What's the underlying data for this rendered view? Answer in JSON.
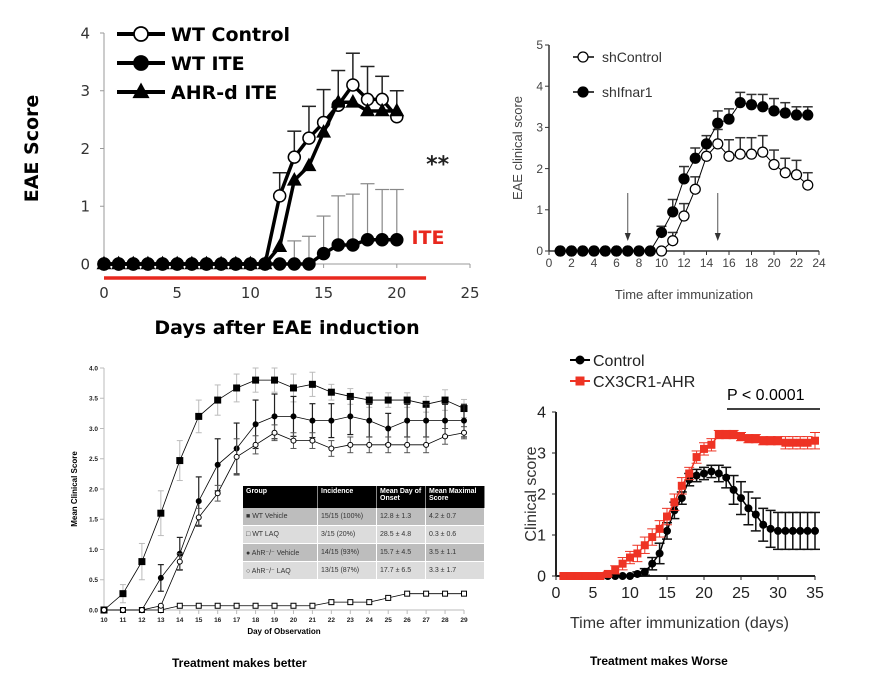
{
  "captions": {
    "left": "Treatment makes better",
    "right": "Treatment makes Worse"
  },
  "chart_data": [
    {
      "id": "panel-top-left",
      "type": "line",
      "title": "",
      "xlabel": "Days after EAE induction",
      "ylabel": "EAE Score",
      "xlim": [
        0,
        25
      ],
      "ylim": [
        0,
        4
      ],
      "xticks": [
        0,
        5,
        10,
        15,
        20,
        25
      ],
      "yticks": [
        0,
        1,
        2,
        3,
        4
      ],
      "legend_position": "top-left",
      "annotations": [
        {
          "text": "**",
          "x": 22,
          "y": 1.6,
          "color": "#222222"
        },
        {
          "text": "ITE",
          "x": 21,
          "y": 0.35,
          "color": "#e8281e"
        }
      ],
      "treatment_bar": {
        "from": 0,
        "to": 22,
        "color": "#e8281e",
        "label": "ITE"
      },
      "series": [
        {
          "name": "WT Control",
          "marker": "open-circle",
          "x": [
            0,
            1,
            2,
            3,
            4,
            5,
            6,
            7,
            8,
            9,
            10,
            11,
            12,
            13,
            14,
            15,
            16,
            17,
            18,
            19,
            20
          ],
          "y": [
            0,
            0,
            0,
            0,
            0,
            0,
            0,
            0,
            0,
            0,
            0,
            0,
            1.18,
            1.85,
            2.18,
            2.45,
            2.75,
            3.1,
            2.85,
            2.85,
            2.55
          ],
          "err": [
            0,
            0,
            0,
            0,
            0,
            0,
            0,
            0,
            0,
            0,
            0,
            0,
            0.4,
            0.45,
            0.55,
            0.57,
            0.6,
            0.55,
            0.57,
            0.4,
            0.45
          ]
        },
        {
          "name": "WT ITE",
          "marker": "filled-circle",
          "x": [
            0,
            1,
            2,
            3,
            4,
            5,
            6,
            7,
            8,
            9,
            10,
            11,
            12,
            13,
            14,
            15,
            16,
            17,
            18,
            19,
            20
          ],
          "y": [
            0,
            0,
            0,
            0,
            0,
            0,
            0,
            0,
            0,
            0,
            0,
            0,
            0,
            0,
            0,
            0.18,
            0.33,
            0.33,
            0.42,
            0.42,
            0.42
          ],
          "err": [
            0,
            0,
            0,
            0,
            0,
            0,
            0,
            0,
            0,
            0,
            0,
            0,
            0,
            0.4,
            0.48,
            0.65,
            0.85,
            0.88,
            0.97,
            0.87,
            0.87
          ]
        },
        {
          "name": "AHR-d ITE",
          "marker": "filled-triangle",
          "x": [
            0,
            1,
            2,
            3,
            4,
            5,
            6,
            7,
            8,
            9,
            10,
            11,
            12,
            13,
            14,
            15,
            16,
            17,
            18,
            19,
            20
          ],
          "y": [
            0,
            0,
            0,
            0,
            0,
            0,
            0,
            0,
            0,
            0,
            0,
            0,
            0.3,
            1.45,
            1.7,
            2.28,
            2.8,
            2.8,
            2.65,
            2.65,
            2.65
          ],
          "err": [
            0,
            0,
            0,
            0,
            0,
            0,
            0,
            0,
            0,
            0,
            0,
            0,
            0,
            0,
            0,
            0,
            0,
            0,
            0,
            0,
            0
          ]
        }
      ]
    },
    {
      "id": "panel-top-right",
      "type": "line",
      "title": "",
      "xlabel": "Time after immunization",
      "ylabel": "EAE clinical score",
      "xlim": [
        0,
        24
      ],
      "ylim": [
        0,
        5
      ],
      "xticks": [
        0,
        2,
        4,
        6,
        8,
        10,
        12,
        14,
        16,
        18,
        20,
        22,
        24
      ],
      "yticks": [
        0,
        1,
        2,
        3,
        4,
        5
      ],
      "legend_position": "top-left",
      "arrows_at_x": [
        7,
        15
      ],
      "series": [
        {
          "name": "shControl",
          "marker": "open-circle",
          "x": [
            1,
            2,
            3,
            4,
            5,
            6,
            7,
            8,
            9,
            10,
            11,
            12,
            13,
            14,
            15,
            16,
            17,
            18,
            19,
            20,
            21,
            22,
            23
          ],
          "y": [
            0,
            0,
            0,
            0,
            0,
            0,
            0,
            0,
            0,
            0,
            0.25,
            0.85,
            1.5,
            2.3,
            2.6,
            2.3,
            2.35,
            2.35,
            2.4,
            2.1,
            1.9,
            1.85,
            1.6
          ],
          "err": [
            0,
            0,
            0,
            0,
            0,
            0,
            0,
            0,
            0,
            0,
            0.2,
            0.3,
            0.3,
            0.35,
            0.35,
            0.4,
            0.4,
            0.4,
            0.4,
            0.35,
            0.35,
            0.35,
            0.3
          ]
        },
        {
          "name": "shIfnar1",
          "marker": "filled-circle",
          "x": [
            1,
            2,
            3,
            4,
            5,
            6,
            7,
            8,
            9,
            10,
            11,
            12,
            13,
            14,
            15,
            16,
            17,
            18,
            19,
            20,
            21,
            22,
            23
          ],
          "y": [
            0,
            0,
            0,
            0,
            0,
            0,
            0,
            0,
            0,
            0.45,
            0.95,
            1.75,
            2.25,
            2.6,
            3.1,
            3.2,
            3.6,
            3.55,
            3.5,
            3.4,
            3.35,
            3.3,
            3.3
          ],
          "err": [
            0,
            0,
            0,
            0,
            0,
            0,
            0,
            0,
            0,
            0.15,
            0.3,
            0.3,
            0.25,
            0.2,
            0.3,
            0.25,
            0.25,
            0.25,
            0.3,
            0.3,
            0.25,
            0.2,
            0.2
          ]
        }
      ]
    },
    {
      "id": "panel-bottom-left",
      "type": "line",
      "title": "",
      "xlabel": "Day of Observation",
      "ylabel": "Mean Clinical Score",
      "xlim": [
        10,
        29
      ],
      "ylim": [
        0,
        4.0
      ],
      "xticks": [
        10,
        11,
        12,
        13,
        14,
        15,
        16,
        17,
        18,
        19,
        20,
        21,
        22,
        23,
        24,
        25,
        26,
        27,
        28,
        29
      ],
      "yticks": [
        "0.0",
        "0.5",
        "1.0",
        "1.5",
        "2.0",
        "2.5",
        "3.0",
        "3.5",
        "4.0"
      ],
      "series": [
        {
          "name": "WT Vehicle",
          "marker": "filled-square",
          "x": [
            10,
            11,
            12,
            13,
            14,
            15,
            16,
            17,
            18,
            19,
            20,
            21,
            22,
            23,
            24,
            25,
            26,
            27,
            28,
            29
          ],
          "y": [
            0,
            0.27,
            0.8,
            1.6,
            2.47,
            3.2,
            3.47,
            3.67,
            3.8,
            3.8,
            3.67,
            3.73,
            3.6,
            3.53,
            3.47,
            3.47,
            3.47,
            3.4,
            3.47,
            3.33
          ],
          "err": [
            0,
            0.15,
            0.3,
            0.37,
            0.33,
            0.27,
            0.25,
            0.23,
            0.2,
            0.2,
            0.23,
            0.2,
            0.13,
            0.13,
            0.12,
            0.12,
            0.12,
            0.13,
            0.17,
            0.15
          ]
        },
        {
          "name": "WT LAQ",
          "marker": "open-square",
          "x": [
            10,
            11,
            12,
            13,
            14,
            15,
            16,
            17,
            18,
            19,
            20,
            21,
            22,
            23,
            24,
            25,
            26,
            27,
            28,
            29
          ],
          "y": [
            0,
            0,
            0,
            0,
            0.07,
            0.07,
            0.07,
            0.07,
            0.07,
            0.07,
            0.07,
            0.07,
            0.13,
            0.13,
            0.13,
            0.2,
            0.27,
            0.27,
            0.27,
            0.27
          ],
          "err": [
            0,
            0,
            0,
            0,
            0,
            0,
            0,
            0,
            0,
            0,
            0,
            0,
            0,
            0,
            0,
            0,
            0,
            0,
            0,
            0
          ]
        },
        {
          "name": "AhR-/- Vehicle",
          "marker": "filled-circle",
          "x": [
            10,
            11,
            12,
            13,
            14,
            15,
            16,
            17,
            18,
            19,
            20,
            21,
            22,
            23,
            24,
            25,
            26,
            27,
            28,
            29
          ],
          "y": [
            0,
            0,
            0,
            0.53,
            0.93,
            1.8,
            2.4,
            2.67,
            3.07,
            3.2,
            3.2,
            3.13,
            3.13,
            3.2,
            3.13,
            3.0,
            3.13,
            3.13,
            3.13,
            3.13
          ],
          "err": [
            0,
            0,
            0,
            0.22,
            0.27,
            0.4,
            0.43,
            0.42,
            0.4,
            0.37,
            0.33,
            0.28,
            0.28,
            0.3,
            0.27,
            0.25,
            0.27,
            0.27,
            0.27,
            0.27
          ]
        },
        {
          "name": "AhR-/- LAQ",
          "marker": "open-circle",
          "x": [
            10,
            11,
            12,
            13,
            14,
            15,
            16,
            17,
            18,
            19,
            20,
            21,
            22,
            23,
            24,
            25,
            26,
            27,
            28,
            29
          ],
          "y": [
            0,
            0,
            0,
            0.07,
            0.8,
            1.53,
            1.93,
            2.53,
            2.73,
            2.93,
            2.8,
            2.8,
            2.67,
            2.73,
            2.73,
            2.73,
            2.73,
            2.73,
            2.87,
            2.93
          ],
          "err": [
            0,
            0,
            0,
            0,
            0.13,
            0.15,
            0.13,
            0.3,
            0.15,
            0.13,
            0.13,
            0.13,
            0.13,
            0.13,
            0.13,
            0.13,
            0.13,
            0.13,
            0.13,
            0.1
          ]
        }
      ],
      "table": {
        "headers": [
          "Group",
          "Incidence",
          "Mean Day of Onset",
          "Mean Maximal Score"
        ],
        "rows": [
          {
            "marker": "■",
            "group": "WT Vehicle",
            "incidence": "15/15 (100%)",
            "onset": "12.8 ± 1.3",
            "max": "4.2 ± 0.7"
          },
          {
            "marker": "□",
            "group": "WT LAQ",
            "incidence": "3/15 (20%)",
            "onset": "28.5 ± 4.8",
            "max": "0.3 ± 0.6"
          },
          {
            "marker": "●",
            "group": "AhR⁻/⁻ Vehicle",
            "incidence": "14/15 (93%)",
            "onset": "15.7 ± 4.5",
            "max": "3.5 ± 1.1"
          },
          {
            "marker": "○",
            "group": "AhR⁻/⁻ LAQ",
            "incidence": "13/15 (87%)",
            "onset": "17.7 ± 6.5",
            "max": "3.3 ± 1.7"
          }
        ]
      }
    },
    {
      "id": "panel-bottom-right",
      "type": "line",
      "title": "",
      "xlabel": "Time after immunization (days)",
      "ylabel": "Clinical score",
      "xlim": [
        0,
        35
      ],
      "ylim": [
        0,
        4
      ],
      "xticks": [
        0,
        5,
        10,
        15,
        20,
        25,
        30,
        35
      ],
      "yticks": [
        0,
        1,
        2,
        3,
        4
      ],
      "legend_position": "top-left",
      "annotations": [
        {
          "text": "P < 0.0001",
          "x": 29,
          "y": 4.3,
          "color": "#000000"
        }
      ],
      "series": [
        {
          "name": "Control",
          "color": "#000000",
          "marker": "filled-circle",
          "x": [
            1,
            2,
            3,
            4,
            5,
            6,
            7,
            8,
            9,
            10,
            11,
            12,
            13,
            14,
            15,
            16,
            17,
            18,
            19,
            20,
            21,
            22,
            23,
            24,
            25,
            26,
            27,
            28,
            29,
            30,
            31,
            32,
            33,
            34,
            35
          ],
          "y": [
            0,
            0,
            0,
            0,
            0,
            0,
            0,
            0,
            0,
            0,
            0.05,
            0.1,
            0.3,
            0.55,
            1.1,
            1.6,
            1.9,
            2.35,
            2.45,
            2.5,
            2.55,
            2.5,
            2.4,
            2.1,
            1.9,
            1.65,
            1.5,
            1.25,
            1.15,
            1.1,
            1.1,
            1.1,
            1.1,
            1.1,
            1.1
          ],
          "err": [
            0,
            0,
            0,
            0,
            0,
            0,
            0,
            0,
            0,
            0,
            0.05,
            0.08,
            0.15,
            0.25,
            0.2,
            0.2,
            0.15,
            0.15,
            0.15,
            0.15,
            0.15,
            0.2,
            0.25,
            0.35,
            0.4,
            0.4,
            0.4,
            0.4,
            0.45,
            0.45,
            0.45,
            0.45,
            0.45,
            0.45,
            0.45
          ]
        },
        {
          "name": "CX3CR1-AHR",
          "color": "#ee3324",
          "marker": "filled-square",
          "x": [
            1,
            2,
            3,
            4,
            5,
            6,
            7,
            8,
            9,
            10,
            11,
            12,
            13,
            14,
            15,
            16,
            17,
            18,
            19,
            20,
            21,
            22,
            23,
            24,
            25,
            26,
            27,
            28,
            29,
            30,
            31,
            32,
            33,
            34,
            35
          ],
          "y": [
            0,
            0,
            0,
            0,
            0,
            0,
            0.05,
            0.15,
            0.3,
            0.45,
            0.55,
            0.75,
            0.95,
            1.15,
            1.45,
            1.8,
            2.2,
            2.5,
            2.9,
            3.1,
            3.2,
            3.45,
            3.45,
            3.45,
            3.4,
            3.35,
            3.35,
            3.3,
            3.3,
            3.3,
            3.25,
            3.25,
            3.25,
            3.25,
            3.3
          ],
          "err": [
            0,
            0,
            0,
            0,
            0,
            0,
            0.05,
            0.1,
            0.15,
            0.15,
            0.2,
            0.2,
            0.2,
            0.2,
            0.2,
            0.2,
            0.2,
            0.15,
            0.15,
            0.15,
            0.15,
            0.1,
            0.1,
            0.1,
            0.1,
            0.1,
            0.1,
            0.1,
            0.1,
            0.1,
            0.15,
            0.15,
            0.15,
            0.15,
            0.2
          ]
        }
      ]
    }
  ]
}
